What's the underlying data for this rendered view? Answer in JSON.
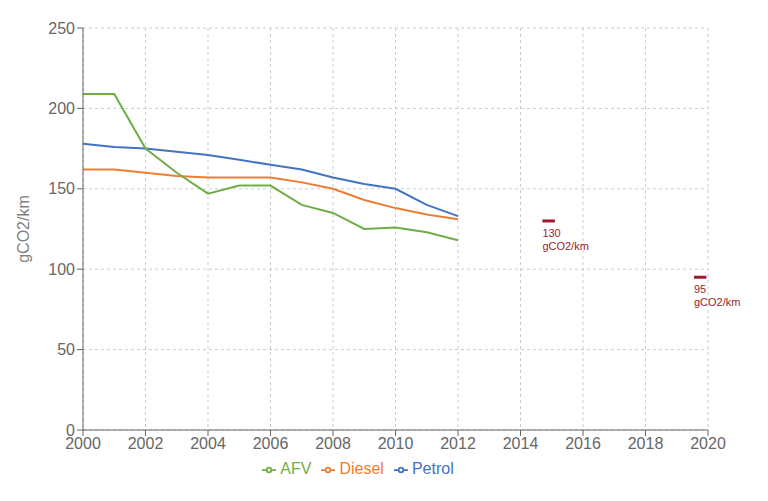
{
  "chart_data": {
    "type": "line",
    "ylabel": "gCO2/km",
    "x": [
      2000,
      2001,
      2002,
      2003,
      2004,
      2005,
      2006,
      2007,
      2008,
      2009,
      2010,
      2011,
      2012
    ],
    "series": [
      {
        "name": "Petrol",
        "color": "#4472C4",
        "values": [
          178,
          176,
          175,
          173,
          171,
          168,
          165,
          162,
          157,
          153,
          150,
          140,
          133
        ]
      },
      {
        "name": "Diesel",
        "color": "#ED7D31",
        "values": [
          162,
          162,
          160,
          158,
          157,
          157,
          157,
          154,
          150,
          143,
          138,
          134,
          131
        ]
      },
      {
        "name": "AFV",
        "color": "#70AD47",
        "values": [
          209,
          209,
          175,
          160,
          147,
          152,
          152,
          140,
          135,
          125,
          126,
          123,
          118
        ]
      }
    ],
    "targets": [
      {
        "value": 130,
        "x": [
          2014.7,
          2015.1
        ],
        "label": "130\ngCO2/km",
        "color": "#9B1C31"
      },
      {
        "value": 95,
        "x": [
          2019.55,
          2019.95
        ],
        "label": "95\ngCO2/km",
        "color": "#9B1C31"
      }
    ],
    "xlim": [
      2000,
      2020
    ],
    "ylim": [
      0,
      250
    ],
    "xticks": [
      2000,
      2002,
      2004,
      2006,
      2008,
      2010,
      2012,
      2014,
      2016,
      2018,
      2020
    ],
    "yticks": [
      0,
      50,
      100,
      150,
      200,
      250
    ],
    "grid": true
  }
}
